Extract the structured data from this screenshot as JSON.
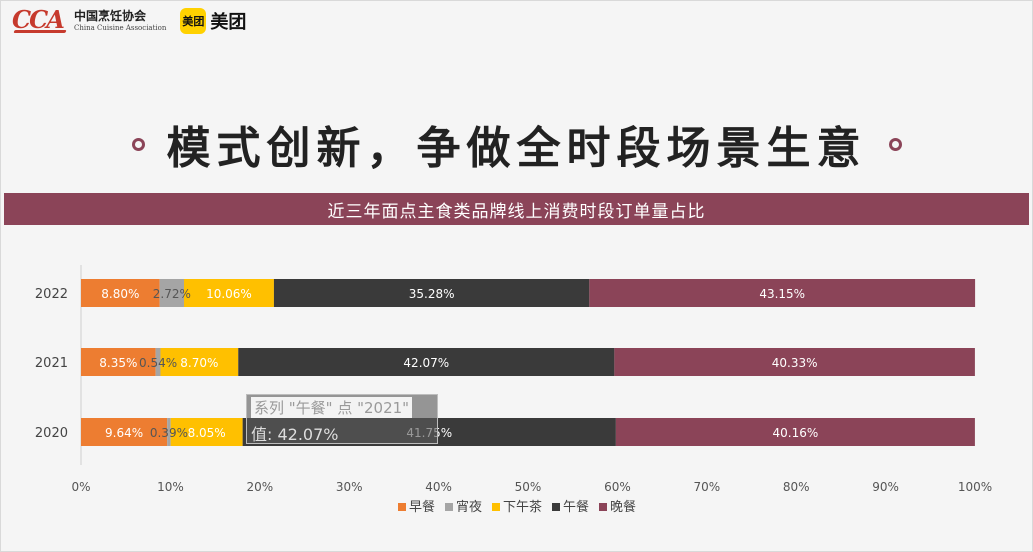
{
  "logos": {
    "cca_letters": "CCA",
    "cca_name_cn": "中国烹饪协会",
    "cca_name_en": "China Cuisine Association",
    "meituan_badge": "美团",
    "meituan_text": "美团"
  },
  "headline": "模式创新，争做全时段场景生意",
  "colors": {
    "accent": "#8b4458",
    "breakfast": "#ed7d31",
    "late_night": "#a5a5a5",
    "afternoon_tea": "#ffc000",
    "lunch": "#3a3a3a",
    "dinner": "#8b4458"
  },
  "chart_data": {
    "type": "bar",
    "orientation": "horizontal",
    "stacked": "percent",
    "title": "近三年面点主食类品牌线上消费时段订单量占比",
    "categories": [
      "2022",
      "2021",
      "2020"
    ],
    "series": [
      {
        "name": "早餐",
        "values": [
          8.8,
          8.35,
          9.64
        ],
        "labels": [
          "8.80%",
          "8.35%",
          "9.64%"
        ]
      },
      {
        "name": "宵夜",
        "values": [
          2.72,
          0.54,
          0.39
        ],
        "labels": [
          "2.72%",
          "0.54%",
          "0.39%"
        ]
      },
      {
        "name": "下午茶",
        "values": [
          10.06,
          8.7,
          8.05
        ],
        "labels": [
          "10.06%",
          "8.70%",
          "8.05%"
        ]
      },
      {
        "name": "午餐",
        "values": [
          35.28,
          42.07,
          41.75
        ],
        "labels": [
          "35.28%",
          "42.07%",
          "41.75%"
        ]
      },
      {
        "name": "晚餐",
        "values": [
          43.15,
          40.33,
          40.16
        ],
        "labels": [
          "43.15%",
          "40.33%",
          "40.16%"
        ]
      }
    ],
    "xlim": [
      0,
      100
    ],
    "xticks": [
      "0%",
      "10%",
      "20%",
      "30%",
      "40%",
      "50%",
      "60%",
      "70%",
      "80%",
      "90%",
      "100%"
    ],
    "grid": false,
    "legend_position": "bottom"
  },
  "tooltip": {
    "line1": "系列 \"午餐\" 点 \"2021\"",
    "line2": "值: 42.07%"
  }
}
